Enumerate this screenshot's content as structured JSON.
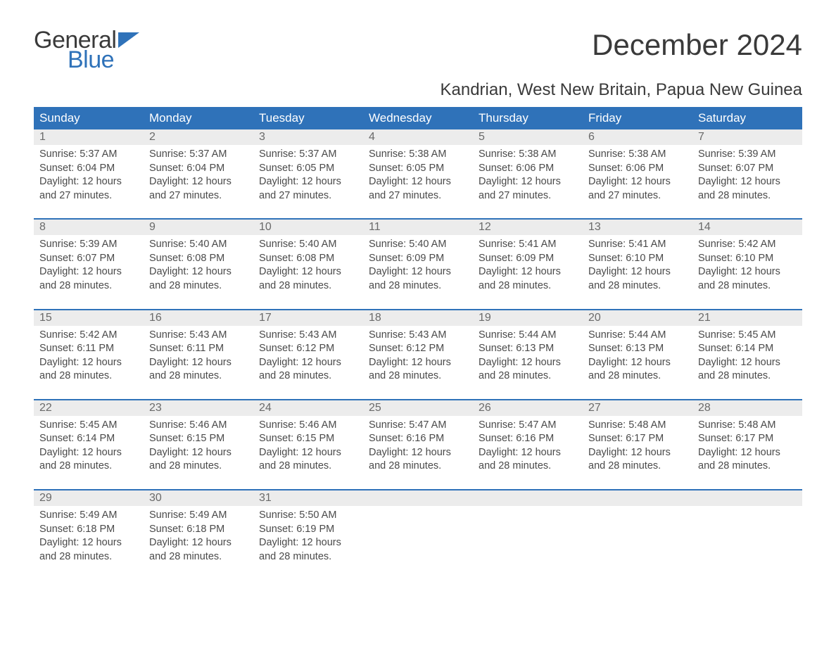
{
  "brand": {
    "line1": "General",
    "line2": "Blue",
    "icon_color": "#2f72b9"
  },
  "title": "December 2024",
  "location": "Kandrian, West New Britain, Papua New Guinea",
  "colors": {
    "header_bg": "#2f72b9",
    "header_text": "#ffffff",
    "daynum_bg": "#ececec",
    "text": "#4a4a4a",
    "sep": "#2f72b9"
  },
  "weekdays": [
    "Sunday",
    "Monday",
    "Tuesday",
    "Wednesday",
    "Thursday",
    "Friday",
    "Saturday"
  ],
  "weeks": [
    [
      {
        "n": "1",
        "sunrise": "Sunrise: 5:37 AM",
        "sunset": "Sunset: 6:04 PM",
        "d1": "Daylight: 12 hours",
        "d2": "and 27 minutes."
      },
      {
        "n": "2",
        "sunrise": "Sunrise: 5:37 AM",
        "sunset": "Sunset: 6:04 PM",
        "d1": "Daylight: 12 hours",
        "d2": "and 27 minutes."
      },
      {
        "n": "3",
        "sunrise": "Sunrise: 5:37 AM",
        "sunset": "Sunset: 6:05 PM",
        "d1": "Daylight: 12 hours",
        "d2": "and 27 minutes."
      },
      {
        "n": "4",
        "sunrise": "Sunrise: 5:38 AM",
        "sunset": "Sunset: 6:05 PM",
        "d1": "Daylight: 12 hours",
        "d2": "and 27 minutes."
      },
      {
        "n": "5",
        "sunrise": "Sunrise: 5:38 AM",
        "sunset": "Sunset: 6:06 PM",
        "d1": "Daylight: 12 hours",
        "d2": "and 27 minutes."
      },
      {
        "n": "6",
        "sunrise": "Sunrise: 5:38 AM",
        "sunset": "Sunset: 6:06 PM",
        "d1": "Daylight: 12 hours",
        "d2": "and 27 minutes."
      },
      {
        "n": "7",
        "sunrise": "Sunrise: 5:39 AM",
        "sunset": "Sunset: 6:07 PM",
        "d1": "Daylight: 12 hours",
        "d2": "and 28 minutes."
      }
    ],
    [
      {
        "n": "8",
        "sunrise": "Sunrise: 5:39 AM",
        "sunset": "Sunset: 6:07 PM",
        "d1": "Daylight: 12 hours",
        "d2": "and 28 minutes."
      },
      {
        "n": "9",
        "sunrise": "Sunrise: 5:40 AM",
        "sunset": "Sunset: 6:08 PM",
        "d1": "Daylight: 12 hours",
        "d2": "and 28 minutes."
      },
      {
        "n": "10",
        "sunrise": "Sunrise: 5:40 AM",
        "sunset": "Sunset: 6:08 PM",
        "d1": "Daylight: 12 hours",
        "d2": "and 28 minutes."
      },
      {
        "n": "11",
        "sunrise": "Sunrise: 5:40 AM",
        "sunset": "Sunset: 6:09 PM",
        "d1": "Daylight: 12 hours",
        "d2": "and 28 minutes."
      },
      {
        "n": "12",
        "sunrise": "Sunrise: 5:41 AM",
        "sunset": "Sunset: 6:09 PM",
        "d1": "Daylight: 12 hours",
        "d2": "and 28 minutes."
      },
      {
        "n": "13",
        "sunrise": "Sunrise: 5:41 AM",
        "sunset": "Sunset: 6:10 PM",
        "d1": "Daylight: 12 hours",
        "d2": "and 28 minutes."
      },
      {
        "n": "14",
        "sunrise": "Sunrise: 5:42 AM",
        "sunset": "Sunset: 6:10 PM",
        "d1": "Daylight: 12 hours",
        "d2": "and 28 minutes."
      }
    ],
    [
      {
        "n": "15",
        "sunrise": "Sunrise: 5:42 AM",
        "sunset": "Sunset: 6:11 PM",
        "d1": "Daylight: 12 hours",
        "d2": "and 28 minutes."
      },
      {
        "n": "16",
        "sunrise": "Sunrise: 5:43 AM",
        "sunset": "Sunset: 6:11 PM",
        "d1": "Daylight: 12 hours",
        "d2": "and 28 minutes."
      },
      {
        "n": "17",
        "sunrise": "Sunrise: 5:43 AM",
        "sunset": "Sunset: 6:12 PM",
        "d1": "Daylight: 12 hours",
        "d2": "and 28 minutes."
      },
      {
        "n": "18",
        "sunrise": "Sunrise: 5:43 AM",
        "sunset": "Sunset: 6:12 PM",
        "d1": "Daylight: 12 hours",
        "d2": "and 28 minutes."
      },
      {
        "n": "19",
        "sunrise": "Sunrise: 5:44 AM",
        "sunset": "Sunset: 6:13 PM",
        "d1": "Daylight: 12 hours",
        "d2": "and 28 minutes."
      },
      {
        "n": "20",
        "sunrise": "Sunrise: 5:44 AM",
        "sunset": "Sunset: 6:13 PM",
        "d1": "Daylight: 12 hours",
        "d2": "and 28 minutes."
      },
      {
        "n": "21",
        "sunrise": "Sunrise: 5:45 AM",
        "sunset": "Sunset: 6:14 PM",
        "d1": "Daylight: 12 hours",
        "d2": "and 28 minutes."
      }
    ],
    [
      {
        "n": "22",
        "sunrise": "Sunrise: 5:45 AM",
        "sunset": "Sunset: 6:14 PM",
        "d1": "Daylight: 12 hours",
        "d2": "and 28 minutes."
      },
      {
        "n": "23",
        "sunrise": "Sunrise: 5:46 AM",
        "sunset": "Sunset: 6:15 PM",
        "d1": "Daylight: 12 hours",
        "d2": "and 28 minutes."
      },
      {
        "n": "24",
        "sunrise": "Sunrise: 5:46 AM",
        "sunset": "Sunset: 6:15 PM",
        "d1": "Daylight: 12 hours",
        "d2": "and 28 minutes."
      },
      {
        "n": "25",
        "sunrise": "Sunrise: 5:47 AM",
        "sunset": "Sunset: 6:16 PM",
        "d1": "Daylight: 12 hours",
        "d2": "and 28 minutes."
      },
      {
        "n": "26",
        "sunrise": "Sunrise: 5:47 AM",
        "sunset": "Sunset: 6:16 PM",
        "d1": "Daylight: 12 hours",
        "d2": "and 28 minutes."
      },
      {
        "n": "27",
        "sunrise": "Sunrise: 5:48 AM",
        "sunset": "Sunset: 6:17 PM",
        "d1": "Daylight: 12 hours",
        "d2": "and 28 minutes."
      },
      {
        "n": "28",
        "sunrise": "Sunrise: 5:48 AM",
        "sunset": "Sunset: 6:17 PM",
        "d1": "Daylight: 12 hours",
        "d2": "and 28 minutes."
      }
    ],
    [
      {
        "n": "29",
        "sunrise": "Sunrise: 5:49 AM",
        "sunset": "Sunset: 6:18 PM",
        "d1": "Daylight: 12 hours",
        "d2": "and 28 minutes."
      },
      {
        "n": "30",
        "sunrise": "Sunrise: 5:49 AM",
        "sunset": "Sunset: 6:18 PM",
        "d1": "Daylight: 12 hours",
        "d2": "and 28 minutes."
      },
      {
        "n": "31",
        "sunrise": "Sunrise: 5:50 AM",
        "sunset": "Sunset: 6:19 PM",
        "d1": "Daylight: 12 hours",
        "d2": "and 28 minutes."
      },
      null,
      null,
      null,
      null
    ]
  ]
}
